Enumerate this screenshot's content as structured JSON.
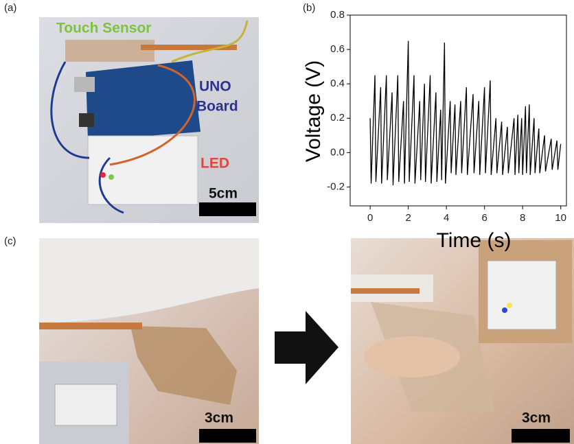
{
  "panels": {
    "a": {
      "label": "(a)",
      "touch_sensor": "Touch Sensor",
      "uno": "UNO",
      "board": "Board",
      "led": "LED",
      "scale": "5cm"
    },
    "b": {
      "label": "(b)"
    },
    "c": {
      "label": "(c)",
      "scale_left": "3cm",
      "scale_right": "3cm"
    }
  },
  "chart_data": {
    "type": "line",
    "xlabel": "Time (s)",
    "ylabel": "Voltage (V)",
    "color": "#000000",
    "x": [
      0,
      0.05,
      0.25,
      0.3,
      0.55,
      0.6,
      0.85,
      0.9,
      1.15,
      1.2,
      1.45,
      1.5,
      1.75,
      1.8,
      2.0,
      2.05,
      2.3,
      2.35,
      2.6,
      2.65,
      2.85,
      2.9,
      3.15,
      3.2,
      3.45,
      3.5,
      3.7,
      3.75,
      3.9,
      3.95,
      4.2,
      4.25,
      4.45,
      4.5,
      4.75,
      4.8,
      5.05,
      5.1,
      5.4,
      5.45,
      5.7,
      5.75,
      6.0,
      6.05,
      6.3,
      6.35,
      6.6,
      6.65,
      6.9,
      6.95,
      7.2,
      7.25,
      7.55,
      7.6,
      7.75,
      7.8,
      7.95,
      8.0,
      8.15,
      8.2,
      8.35,
      8.4,
      8.6,
      8.65,
      8.85,
      8.9,
      9.15,
      9.2,
      9.5,
      9.55,
      9.8,
      9.85,
      10.0
    ],
    "values": [
      0.2,
      -0.18,
      0.45,
      -0.17,
      0.38,
      -0.18,
      0.45,
      -0.16,
      0.35,
      -0.19,
      0.45,
      -0.17,
      0.3,
      -0.18,
      0.65,
      -0.17,
      0.45,
      -0.18,
      0.3,
      -0.16,
      0.4,
      -0.17,
      0.45,
      -0.18,
      0.35,
      -0.17,
      0.25,
      -0.16,
      0.64,
      -0.18,
      0.3,
      -0.12,
      0.28,
      -0.13,
      0.3,
      -0.12,
      0.38,
      -0.13,
      0.34,
      -0.12,
      0.3,
      -0.13,
      0.38,
      -0.12,
      0.42,
      -0.13,
      0.2,
      -0.12,
      0.18,
      -0.13,
      0.15,
      -0.12,
      0.2,
      -0.13,
      0.22,
      -0.12,
      0.2,
      -0.13,
      0.27,
      -0.12,
      0.28,
      -0.13,
      0.2,
      -0.12,
      0.14,
      -0.12,
      0.1,
      -0.11,
      0.08,
      -0.1,
      0.07,
      -0.1,
      0.05
    ],
    "xlim": [
      -1.05,
      10.3
    ],
    "ylim": [
      -0.31,
      0.8
    ],
    "xticks": [
      0,
      2,
      4,
      6,
      8,
      10
    ],
    "yticks": [
      -0.2,
      {
        "value": 0,
        "label": "0.0"
      },
      0.2,
      0.4,
      0.6,
      0.8
    ]
  }
}
